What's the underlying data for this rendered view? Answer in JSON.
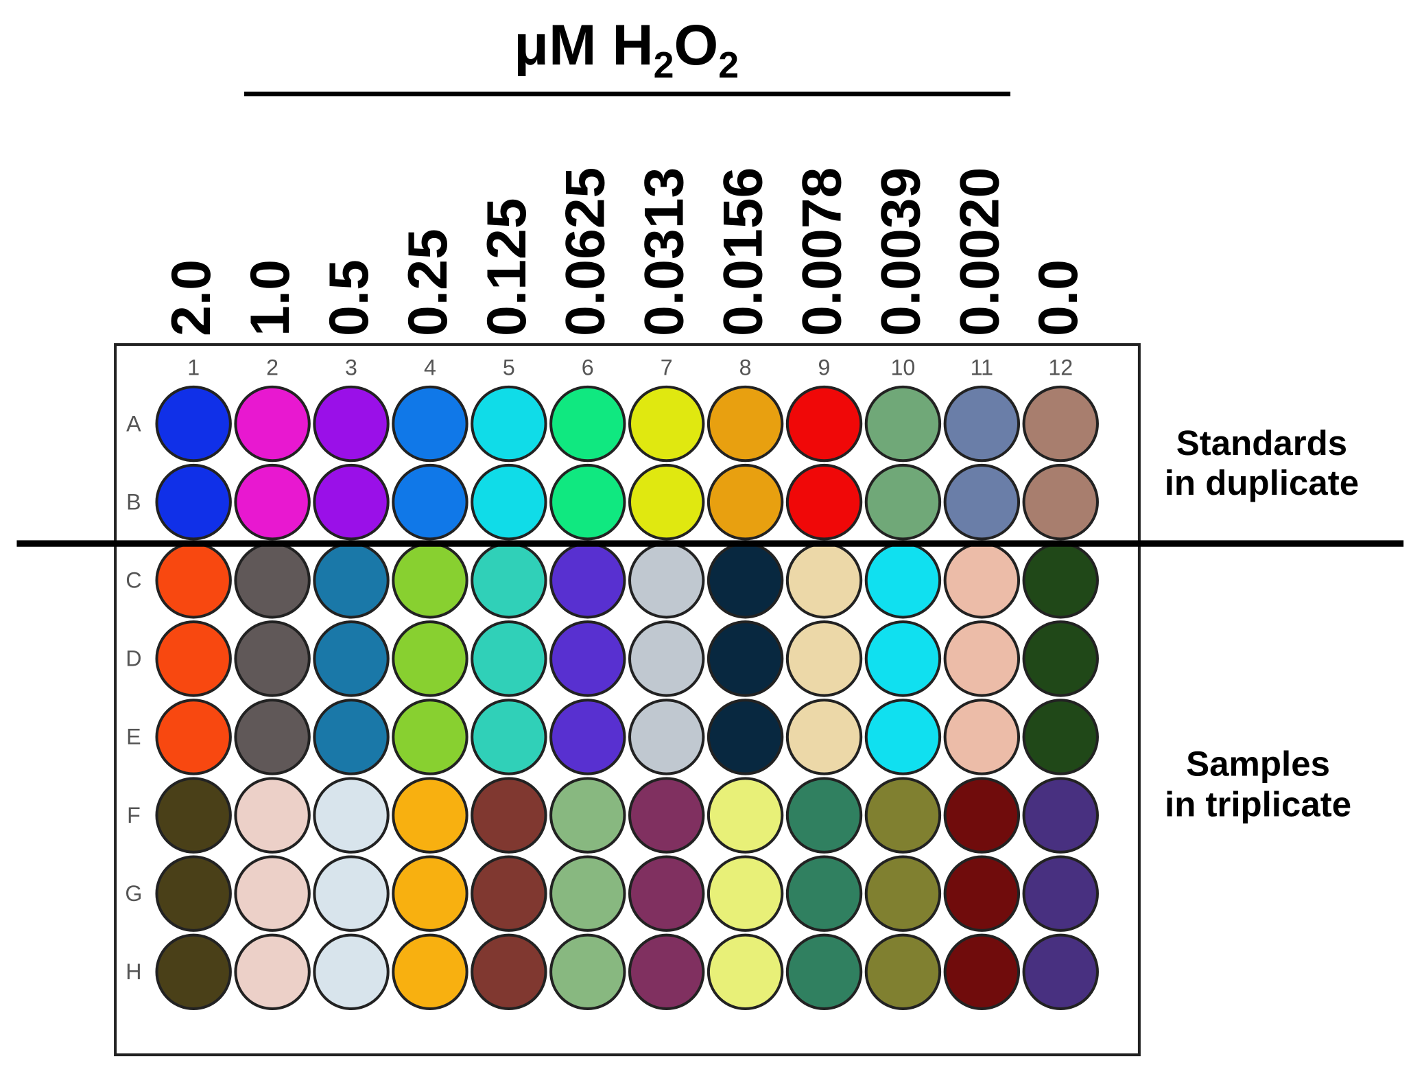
{
  "title": {
    "prefix": "μM H",
    "sub1": "2",
    "mid": "O",
    "sub2": "2"
  },
  "concentrations": [
    "2.0",
    "1.0",
    "0.5",
    "0.25",
    "0.125",
    "0.0625",
    "0.0313",
    "0.0156",
    "0.0078",
    "0.0039",
    "0.0020",
    "0.0"
  ],
  "plate": {
    "columns": [
      "1",
      "2",
      "3",
      "4",
      "5",
      "6",
      "7",
      "8",
      "9",
      "10",
      "11",
      "12"
    ],
    "rows": [
      "A",
      "B",
      "C",
      "D",
      "E",
      "F",
      "G",
      "H"
    ],
    "well_colors": [
      [
        "#1030e8",
        "#e818d0",
        "#9a10e8",
        "#1078e8",
        "#10dce8",
        "#10e880",
        "#e0e810",
        "#e8a010",
        "#f00808",
        "#70a878",
        "#6a7ea8",
        "#a87e6e"
      ],
      [
        "#1030e8",
        "#e818d0",
        "#9a10e8",
        "#1078e8",
        "#10dce8",
        "#10e880",
        "#e0e810",
        "#e8a010",
        "#f00808",
        "#70a878",
        "#6a7ea8",
        "#a87e6e"
      ],
      [
        "#f84810",
        "#605858",
        "#1a78a8",
        "#88d030",
        "#30d0b8",
        "#5830d0",
        "#c0c8d0",
        "#082840",
        "#ecd8a8",
        "#10e0f0",
        "#ecbca8",
        "#204818"
      ],
      [
        "#f84810",
        "#605858",
        "#1a78a8",
        "#88d030",
        "#30d0b8",
        "#5830d0",
        "#c0c8d0",
        "#082840",
        "#ecd8a8",
        "#10e0f0",
        "#ecbca8",
        "#204818"
      ],
      [
        "#f84810",
        "#605858",
        "#1a78a8",
        "#88d030",
        "#30d0b8",
        "#5830d0",
        "#c0c8d0",
        "#082840",
        "#ecd8a8",
        "#10e0f0",
        "#ecbca8",
        "#204818"
      ],
      [
        "#4a4018",
        "#ecd0c8",
        "#d8e4ec",
        "#f8b010",
        "#803830",
        "#88b880",
        "#803060",
        "#e8f078",
        "#308060",
        "#808030",
        "#700c0c",
        "#483080"
      ],
      [
        "#4a4018",
        "#ecd0c8",
        "#d8e4ec",
        "#f8b010",
        "#803830",
        "#88b880",
        "#803060",
        "#e8f078",
        "#308060",
        "#808030",
        "#700c0c",
        "#483080"
      ],
      [
        "#4a4018",
        "#ecd0c8",
        "#d8e4ec",
        "#f8b010",
        "#803830",
        "#88b880",
        "#803060",
        "#e8f078",
        "#308060",
        "#808030",
        "#700c0c",
        "#483080"
      ]
    ]
  },
  "standards_label": [
    "Standards",
    "in duplicate"
  ],
  "samples_label": [
    "Samples",
    "in triplicate"
  ]
}
